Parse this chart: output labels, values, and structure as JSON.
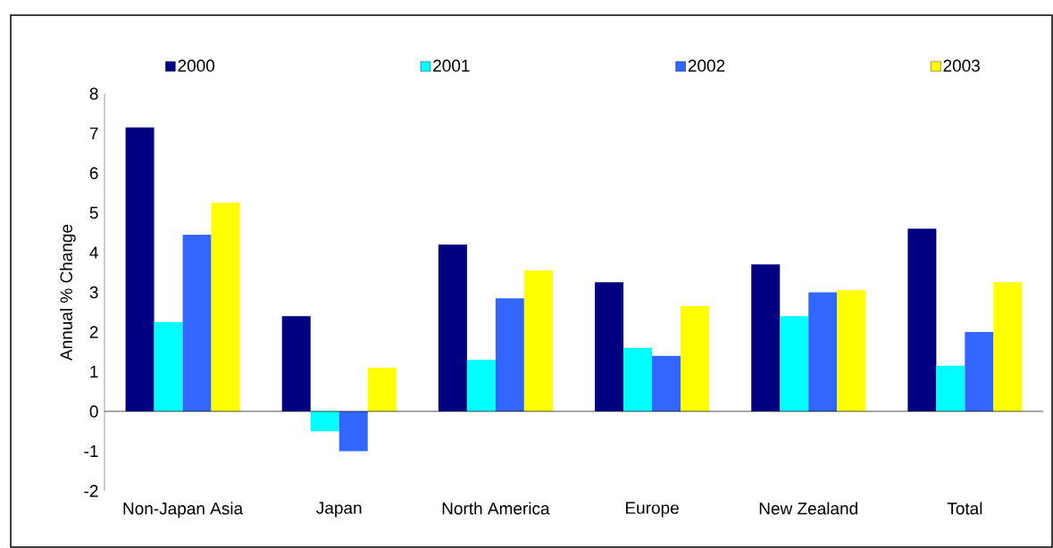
{
  "chart_data": {
    "type": "bar",
    "ylabel": "Annual % Change",
    "categories": [
      "Non-Japan Asia",
      "Japan",
      "North America",
      "Europe",
      "New Zealand",
      "Total"
    ],
    "series": [
      {
        "name": "2000",
        "color": "#000080",
        "values": [
          7.15,
          2.4,
          4.2,
          3.25,
          3.7,
          4.6
        ]
      },
      {
        "name": "2001",
        "color": "#00ffff",
        "values": [
          2.25,
          -0.5,
          1.3,
          1.6,
          2.4,
          1.15
        ]
      },
      {
        "name": "2002",
        "color": "#3366ff",
        "values": [
          4.45,
          -1.0,
          2.85,
          1.4,
          3.0,
          2.0
        ]
      },
      {
        "name": "2003",
        "color": "#ffff00",
        "values": [
          5.25,
          1.1,
          3.55,
          2.65,
          3.05,
          3.25
        ]
      }
    ],
    "ylim": [
      -2,
      8
    ],
    "yticks": [
      -2,
      -1,
      0,
      1,
      2,
      3,
      4,
      5,
      6,
      7,
      8
    ],
    "legend": "top"
  }
}
